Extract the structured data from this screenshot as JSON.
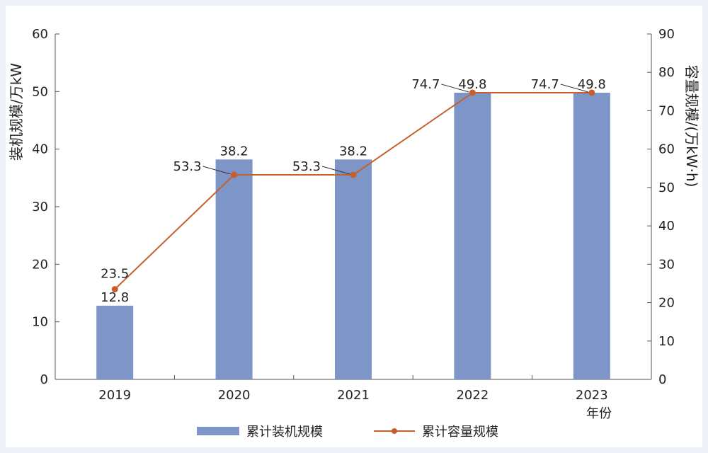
{
  "chart_data": {
    "type": "bar+line",
    "categories": [
      "2019",
      "2020",
      "2021",
      "2022",
      "2023"
    ],
    "series": [
      {
        "name": "累计装机规模",
        "type": "bar",
        "axis": "left",
        "values": [
          12.8,
          38.2,
          38.2,
          49.8,
          49.8
        ],
        "labels": [
          "12.8",
          "38.2",
          "38.2",
          "49.8",
          "49.8"
        ],
        "color": "#7d96c7"
      },
      {
        "name": "累计容量规模",
        "type": "line",
        "axis": "right",
        "values": [
          23.5,
          53.3,
          53.3,
          74.7,
          74.7
        ],
        "labels": [
          "23.5",
          "53.3",
          "53.3",
          "74.7",
          "74.7"
        ],
        "color": "#c65f2b"
      }
    ],
    "xlabel": "年份",
    "ylabel_left": "装机规模/万kW",
    "ylabel_right": "容量规模/(万kW·h)",
    "ylim_left": [
      0,
      60
    ],
    "yticks_left": [
      "0",
      "10",
      "20",
      "30",
      "40",
      "50",
      "60"
    ],
    "ylim_right": [
      0,
      90
    ],
    "yticks_right": [
      "0",
      "10",
      "20",
      "30",
      "40",
      "50",
      "60",
      "70",
      "80",
      "90"
    ],
    "grid": false,
    "legend_position": "bottom-center"
  }
}
